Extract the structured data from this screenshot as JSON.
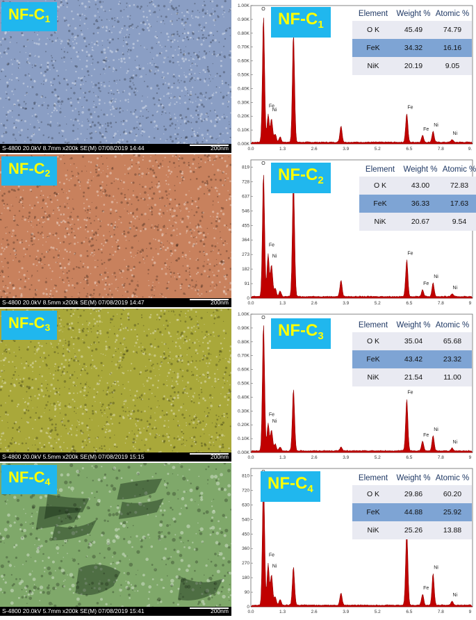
{
  "panels": [
    {
      "label_main": "NF-C",
      "label_sub": "1",
      "sem_info": "S-4800 20.0kV 8.7mm x200k SE(M) 07/08/2019 14:44",
      "sem_scale": "200nm",
      "sem_color": "#8a9ec4",
      "y_ticks": [
        "0.00K",
        "0.10K",
        "0.20K",
        "0.30K",
        "0.40K",
        "0.50K",
        "0.60K",
        "0.70K",
        "0.80K",
        "0.90K",
        "1.00K"
      ],
      "x_ticks": [
        "0.0",
        "1.3",
        "2.6",
        "3.9",
        "5.2",
        "6.5",
        "7.8",
        "9."
      ],
      "table": {
        "headers": [
          "Element",
          "Weight %",
          "Atomic %"
        ],
        "rows": [
          [
            "O K",
            "45.49",
            "74.79"
          ],
          [
            "FeK",
            "34.32",
            "16.16"
          ],
          [
            "NiK",
            "20.19",
            "9.05"
          ]
        ]
      }
    },
    {
      "label_main": "NF-C",
      "label_sub": "2",
      "sem_info": "S-4800 20.0kV 8.5mm x200k SE(M) 07/08/2019 14:47",
      "sem_scale": "200nm",
      "sem_color": "#c8815d",
      "y_ticks": [
        "0",
        "91",
        "182",
        "273",
        "364",
        "455",
        "546",
        "637",
        "728",
        "819"
      ],
      "x_ticks": [
        "0.0",
        "1.3",
        "2.6",
        "3.9",
        "5.2",
        "6.5",
        "7.8",
        "9"
      ],
      "table": {
        "headers": [
          "Element",
          "Weight %",
          "Atomic %"
        ],
        "rows": [
          [
            "O K",
            "43.00",
            "72.83"
          ],
          [
            "FeK",
            "36.33",
            "17.63"
          ],
          [
            "NiK",
            "20.67",
            "9.54"
          ]
        ]
      }
    },
    {
      "label_main": "NF-C",
      "label_sub": "3",
      "sem_info": "S-4800 20.0kV 5.5mm x200k SE(M) 07/08/2019 15:15",
      "sem_scale": "200nm",
      "sem_color": "#a9a83a",
      "y_ticks": [
        "0.00K",
        "0.10K",
        "0.20K",
        "0.30K",
        "0.40K",
        "0.50K",
        "0.60K",
        "0.70K",
        "0.80K",
        "0.90K",
        "1.00K"
      ],
      "x_ticks": [
        "0.0",
        "1.3",
        "2.6",
        "3.9",
        "5.2",
        "6.5",
        "7.8",
        "9"
      ],
      "table": {
        "headers": [
          "Element",
          "Weight %",
          "Atomic %"
        ],
        "rows": [
          [
            "O K",
            "35.04",
            "65.68"
          ],
          [
            "FeK",
            "43.42",
            "23.32"
          ],
          [
            "NiK",
            "21.54",
            "11.00"
          ]
        ]
      }
    },
    {
      "label_main": "NF-C",
      "label_sub": "4",
      "sem_info": "S-4800 20.0kV 5.7mm x200k SE(M) 07/08/2019 15:41",
      "sem_scale": "200nm",
      "sem_color": "#7fa86a",
      "y_ticks": [
        "0",
        "90",
        "180",
        "270",
        "360",
        "450",
        "540",
        "630",
        "720",
        "810"
      ],
      "x_ticks": [
        "0.0",
        "1.3",
        "2.6",
        "3.9",
        "5.2",
        "6.5",
        "7.8",
        "9"
      ],
      "table": {
        "headers": [
          "Element",
          "Weight %",
          "Atomic %"
        ],
        "rows": [
          [
            "O K",
            "29.86",
            "60.20"
          ],
          [
            "FeK",
            "44.88",
            "25.92"
          ],
          [
            "NiK",
            "25.26",
            "13.88"
          ]
        ]
      }
    }
  ],
  "peak_labels": [
    "O",
    "Fe",
    "Ni",
    "Fe",
    "Fe",
    "Ni",
    "Ni"
  ],
  "spectra": [
    [
      [
        0.52,
        0.92
      ],
      [
        0.71,
        0.2
      ],
      [
        0.85,
        0.17
      ],
      [
        1.0,
        0.06
      ],
      [
        1.2,
        0.04
      ],
      [
        1.75,
        0.8
      ],
      [
        3.7,
        0.12
      ],
      [
        6.4,
        0.21
      ],
      [
        7.05,
        0.05
      ],
      [
        7.48,
        0.08
      ],
      [
        8.26,
        0.02
      ]
    ],
    [
      [
        0.52,
        0.9
      ],
      [
        0.71,
        0.31
      ],
      [
        0.85,
        0.23
      ],
      [
        1.0,
        0.06
      ],
      [
        1.2,
        0.04
      ],
      [
        1.75,
        0.86
      ],
      [
        3.7,
        0.12
      ],
      [
        6.4,
        0.27
      ],
      [
        7.05,
        0.05
      ],
      [
        7.48,
        0.1
      ],
      [
        8.26,
        0.02
      ]
    ],
    [
      [
        0.52,
        0.93
      ],
      [
        0.71,
        0.2
      ],
      [
        0.85,
        0.15
      ],
      [
        1.0,
        0.05
      ],
      [
        1.2,
        0.03
      ],
      [
        1.75,
        0.45
      ],
      [
        3.7,
        0.03
      ],
      [
        6.4,
        0.38
      ],
      [
        7.05,
        0.07
      ],
      [
        7.48,
        0.11
      ],
      [
        8.26,
        0.02
      ]
    ],
    [
      [
        0.52,
        0.95
      ],
      [
        0.71,
        0.3
      ],
      [
        0.85,
        0.22
      ],
      [
        1.0,
        0.06
      ],
      [
        1.2,
        0.04
      ],
      [
        1.75,
        0.28
      ],
      [
        3.7,
        0.09
      ],
      [
        6.4,
        0.55
      ],
      [
        7.05,
        0.08
      ],
      [
        7.48,
        0.23
      ],
      [
        8.26,
        0.03
      ]
    ]
  ]
}
